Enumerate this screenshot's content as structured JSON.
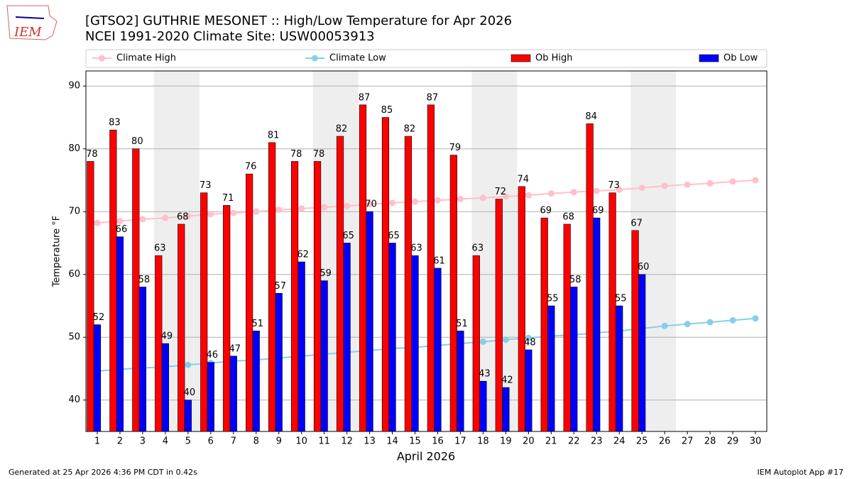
{
  "logo_text": "IEM",
  "chart_data": {
    "type": "bar",
    "title": "[GTSO2] GUTHRIE MESONET :: High/Low Temperature for Apr 2026",
    "subtitle": "NCEI 1991-2020 Climate Site: USW00053913",
    "x_label": "April 2026",
    "y_label": "Temperature °F",
    "footer_left": "Generated at 25 Apr 2026 4:36 PM CDT in 0.42s",
    "footer_right": "IEM Autoplot App #17",
    "x": [
      1,
      2,
      3,
      4,
      5,
      6,
      7,
      8,
      9,
      10,
      11,
      12,
      13,
      14,
      15,
      16,
      17,
      18,
      19,
      20,
      21,
      22,
      23,
      24,
      25,
      26,
      27,
      28,
      29,
      30
    ],
    "xlim": [
      0.5,
      30.5
    ],
    "xticks": [
      1,
      2,
      3,
      4,
      5,
      6,
      7,
      8,
      9,
      10,
      11,
      12,
      13,
      14,
      15,
      16,
      17,
      18,
      19,
      20,
      21,
      22,
      23,
      24,
      25,
      26,
      27,
      28,
      29,
      30
    ],
    "ylim": [
      35,
      92.4
    ],
    "yticks": [
      40,
      50,
      60,
      70,
      80,
      90
    ],
    "grid": true,
    "shaded_x": [
      4,
      5,
      11,
      12,
      18,
      19,
      25,
      26
    ],
    "series": [
      {
        "name": "Climate High",
        "color": "#ffc0cb",
        "kind": "line",
        "values": [
          68.2,
          68.5,
          68.8,
          69.0,
          69.3,
          69.6,
          69.8,
          70.0,
          70.3,
          70.5,
          70.7,
          70.9,
          71.2,
          71.4,
          71.6,
          71.8,
          72.0,
          72.2,
          72.4,
          72.6,
          72.9,
          73.1,
          73.3,
          73.5,
          73.8,
          74.1,
          74.3,
          74.5,
          74.8,
          75.0
        ]
      },
      {
        "name": "Climate Low",
        "color": "#87ceeb",
        "kind": "line",
        "values": [
          44.6,
          44.9,
          45.1,
          45.3,
          45.6,
          45.9,
          46.2,
          46.4,
          46.7,
          47.0,
          47.3,
          47.6,
          47.9,
          48.2,
          48.4,
          48.7,
          49.0,
          49.3,
          49.6,
          49.9,
          50.2,
          50.4,
          50.7,
          51.0,
          51.4,
          51.8,
          52.1,
          52.4,
          52.7,
          53.0
        ]
      },
      {
        "name": "Ob High",
        "color": "#ff0000",
        "kind": "bar",
        "offset": -0.45,
        "values": [
          78,
          83,
          80,
          63,
          68,
          73,
          71,
          76,
          81,
          78,
          78,
          82,
          87,
          85,
          82,
          87,
          79,
          63,
          72,
          74,
          69,
          68,
          84,
          73,
          67,
          null,
          null,
          null,
          null,
          null
        ]
      },
      {
        "name": "Ob Low",
        "color": "#0000ff",
        "kind": "bar",
        "offset": -0.15,
        "values": [
          52,
          66,
          58,
          49,
          40,
          46,
          47,
          51,
          57,
          62,
          59,
          65,
          70,
          65,
          63,
          61,
          51,
          43,
          42,
          48,
          55,
          58,
          69,
          55,
          60,
          null,
          null,
          null,
          null,
          null
        ]
      }
    ]
  }
}
